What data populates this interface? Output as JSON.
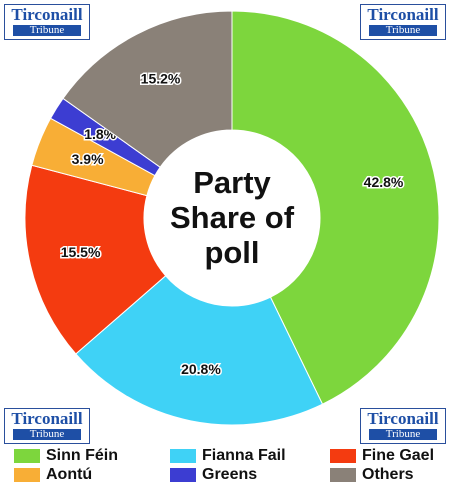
{
  "chart_data": {
    "type": "donut",
    "title": "Party Share of poll",
    "categories": [
      "Sinn Féin",
      "Fianna Fail",
      "Fine Gael",
      "Aontú",
      "Greens",
      "Others"
    ],
    "values": [
      42.8,
      20.8,
      15.5,
      3.9,
      1.8,
      15.2
    ],
    "value_labels": [
      "42.8%",
      "20.8%",
      "15.5%",
      "3.9%",
      "1.8%",
      "15.2%"
    ],
    "colors": [
      "#7dd63d",
      "#3fd2f6",
      "#f43b10",
      "#f8ae36",
      "#3c3dd2",
      "#8a8178"
    ],
    "legend": "bottom"
  },
  "logo": {
    "name": "Tirconaill",
    "subtitle": "Tribune"
  }
}
